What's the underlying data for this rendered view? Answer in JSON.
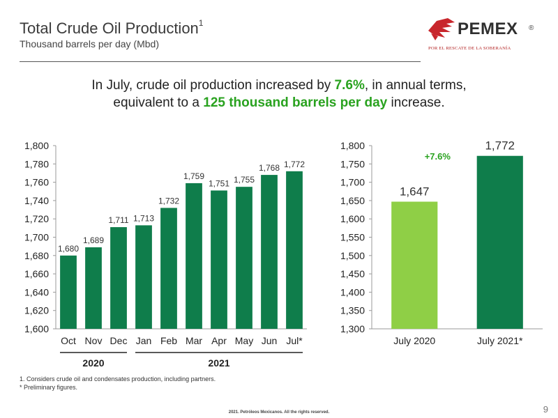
{
  "header": {
    "title": "Total Crude Oil Production",
    "title_sup": "1",
    "subtitle": "Thousand barrels per day (Mbd)"
  },
  "logo": {
    "name": "PEMEX",
    "reg": "®",
    "tagline": "POR EL RESCATE DE LA SOBERANÍA"
  },
  "headline": {
    "line1_pre": "In July, crude oil production increased by ",
    "line1_hl": "7.6%",
    "line1_post": ", in annual terms,",
    "line2_pre": "equivalent to a ",
    "line2_hl": "125 thousand barrels per day",
    "line2_post": " increase."
  },
  "colors": {
    "dark_green": "#0f7d4b",
    "light_green": "#8fcf46",
    "accent_green": "#29a21f"
  },
  "chart_data": [
    {
      "type": "bar",
      "categories": [
        "Oct",
        "Nov",
        "Dec",
        "Jan",
        "Feb",
        "Mar",
        "Apr",
        "May",
        "Jun",
        "Jul*"
      ],
      "values": [
        1680,
        1689,
        1711,
        1713,
        1732,
        1759,
        1751,
        1755,
        1768,
        1772
      ],
      "data_labels": [
        "1,680",
        "1,689",
        "1,711",
        "1,713",
        "1,732",
        "1,759",
        "1,751",
        "1,755",
        "1,768",
        "1,772"
      ],
      "ylim": [
        1600,
        1800
      ],
      "yticks": [
        "1,600",
        "1,620",
        "1,640",
        "1,660",
        "1,680",
        "1,700",
        "1,720",
        "1,740",
        "1,760",
        "1,780",
        "1,800"
      ],
      "groups": [
        {
          "label": "2020",
          "from": 0,
          "to": 2
        },
        {
          "label": "2021",
          "from": 3,
          "to": 9
        }
      ],
      "bar_color": "#0f7d4b",
      "grid": false
    },
    {
      "type": "bar",
      "categories": [
        "July 2020",
        "July 2021*"
      ],
      "values": [
        1647,
        1772
      ],
      "data_labels": [
        "1,647",
        "1,772"
      ],
      "bar_colors": [
        "#8fcf46",
        "#0f7d4b"
      ],
      "annotation": "+7.6%",
      "ylim": [
        1300,
        1800
      ],
      "yticks": [
        "1,300",
        "1,350",
        "1,400",
        "1,450",
        "1,500",
        "1,550",
        "1,600",
        "1,650",
        "1,700",
        "1,750",
        "1,800"
      ],
      "grid": false
    }
  ],
  "footnotes": {
    "note1": "1.    Considers crude oil and condensates production, including partners.",
    "note2": "* Preliminary figures."
  },
  "footer": {
    "page": "9",
    "copyright": "2021. Petróleos Mexicanos. All the rights reserved."
  }
}
